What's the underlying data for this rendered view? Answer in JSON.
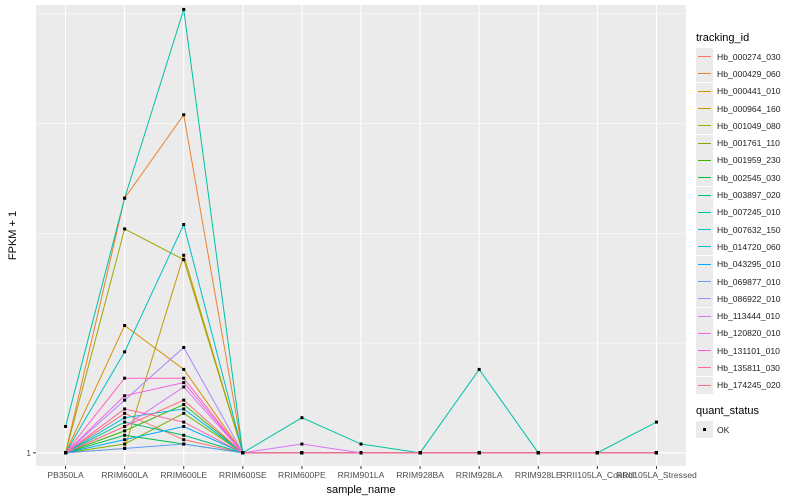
{
  "chart_data": {
    "type": "line",
    "xlabel": "sample_name",
    "ylabel": "FPKM + 1",
    "y_tick_labels": [
      "1"
    ],
    "categories": [
      "PB350LA",
      "RRIM600LA",
      "RRIM600LE",
      "RRIM600SE",
      "RRIM600PE",
      "RRIM901LA",
      "RRIM928BA",
      "RRIM928LA",
      "RRIM928LE",
      "RRII105LA_Control",
      "RRII105LA_Stressed"
    ],
    "ylim": [
      0.97,
      2.02
    ],
    "legend_title": "tracking_id",
    "series": [
      {
        "name": "Hb_000274_030",
        "color": "#F8766D",
        "values": [
          1,
          1.09,
          1.03,
          1,
          1,
          1,
          1,
          1,
          1,
          1,
          1
        ]
      },
      {
        "name": "Hb_000429_060",
        "color": "#EA8331",
        "values": [
          1,
          1.58,
          1.77,
          1,
          1,
          1,
          1,
          1,
          1,
          1,
          1
        ]
      },
      {
        "name": "Hb_000441_010",
        "color": "#D89000",
        "values": [
          1,
          1.29,
          1.19,
          1,
          1,
          1,
          1,
          1,
          1,
          1,
          1
        ]
      },
      {
        "name": "Hb_000964_160",
        "color": "#C09B00",
        "values": [
          1,
          1.01,
          1.45,
          1,
          1,
          1,
          1,
          1,
          1,
          1,
          1
        ]
      },
      {
        "name": "Hb_001049_080",
        "color": "#A3A500",
        "values": [
          1,
          1.51,
          1.44,
          1,
          1,
          1,
          1,
          1,
          1,
          1,
          1
        ]
      },
      {
        "name": "Hb_001761_110",
        "color": "#7CAE00",
        "values": [
          1,
          1.02,
          1.09,
          1,
          1,
          1,
          1,
          1,
          1,
          1,
          1
        ]
      },
      {
        "name": "Hb_001959_230",
        "color": "#39B600",
        "values": [
          1,
          1.05,
          1.11,
          1,
          1,
          1,
          1,
          1,
          1,
          1,
          1
        ]
      },
      {
        "name": "Hb_002545_030",
        "color": "#00BB4E",
        "values": [
          1,
          1.04,
          1.02,
          1,
          1,
          1,
          1,
          1,
          1,
          1,
          1
        ]
      },
      {
        "name": "Hb_003897_020",
        "color": "#00BF7D",
        "values": [
          1,
          1.07,
          1.04,
          1,
          1,
          1,
          1,
          1,
          1,
          1,
          1
        ]
      },
      {
        "name": "Hb_007245_010",
        "color": "#00C1A3",
        "values": [
          1.06,
          1.58,
          2.01,
          1,
          1.08,
          1.02,
          1,
          1.19,
          1,
          1,
          1.07
        ]
      },
      {
        "name": "Hb_007632_150",
        "color": "#00BFC4",
        "values": [
          1,
          1.23,
          1.52,
          1,
          1,
          1,
          1,
          1,
          1,
          1,
          1
        ]
      },
      {
        "name": "Hb_014720_060",
        "color": "#00B8E5",
        "values": [
          1,
          1.08,
          1.1,
          1,
          1,
          1,
          1,
          1,
          1,
          1,
          1
        ]
      },
      {
        "name": "Hb_043295_010",
        "color": "#00A9FF",
        "values": [
          1,
          1.03,
          1.06,
          1,
          1,
          1,
          1,
          1,
          1,
          1,
          1
        ]
      },
      {
        "name": "Hb_069877_010",
        "color": "#619CFF",
        "values": [
          1,
          1.01,
          1.02,
          1,
          1,
          1,
          1,
          1,
          1,
          1,
          1
        ]
      },
      {
        "name": "Hb_086922_010",
        "color": "#AE87FF",
        "values": [
          1,
          1.12,
          1.24,
          1,
          1,
          1,
          1,
          1,
          1,
          1,
          1
        ]
      },
      {
        "name": "Hb_113444_010",
        "color": "#DB72FB",
        "values": [
          1,
          1.06,
          1.15,
          1,
          1.02,
          1,
          1,
          1,
          1,
          1,
          1
        ]
      },
      {
        "name": "Hb_120820_010",
        "color": "#F564E3",
        "values": [
          1,
          1.13,
          1.16,
          1,
          1,
          1,
          1,
          1,
          1,
          1,
          1
        ]
      },
      {
        "name": "Hb_131101_010",
        "color": "#FF61C3",
        "values": [
          1,
          1.17,
          1.17,
          1,
          1,
          1,
          1,
          1,
          1,
          1,
          1
        ]
      },
      {
        "name": "Hb_135811_030",
        "color": "#FF67A4",
        "values": [
          1,
          1.1,
          1.07,
          1,
          1,
          1,
          1,
          1,
          1,
          1,
          1
        ]
      },
      {
        "name": "Hb_174245_020",
        "color": "#FC717F",
        "values": [
          1,
          1.06,
          1.12,
          1,
          1,
          1,
          1,
          1,
          1,
          1,
          1
        ]
      }
    ],
    "legend2_title": "quant_status",
    "legend2_entries": [
      "OK"
    ]
  }
}
